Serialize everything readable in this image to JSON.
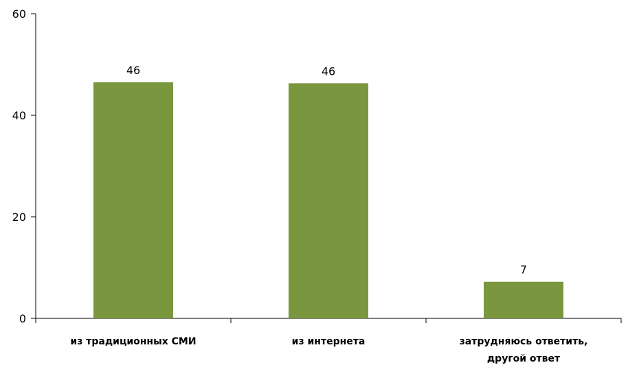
{
  "chart_data": {
    "type": "bar",
    "categories": [
      [
        "из традиционных СМИ"
      ],
      [
        "из интернета"
      ],
      [
        "затрудняюсь ответить,",
        "другой ответ"
      ]
    ],
    "values": [
      46.5,
      46.3,
      7.2
    ],
    "data_labels": [
      "46",
      "46",
      "7"
    ],
    "ylim": [
      0,
      60
    ],
    "yticks": [
      0,
      20,
      40,
      60
    ],
    "bar_color": "#7A963E",
    "grid": false,
    "legend": "none"
  }
}
